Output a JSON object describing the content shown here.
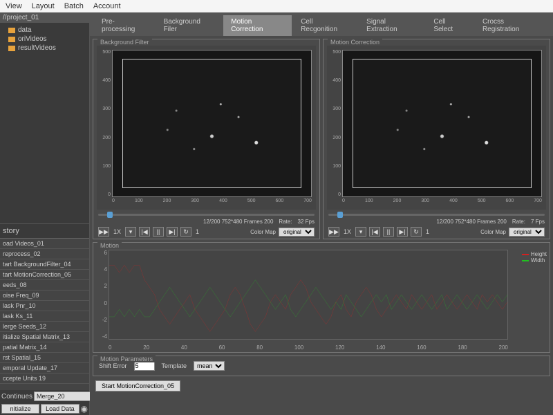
{
  "menubar": [
    "View",
    "Layout",
    "Batch",
    "Account"
  ],
  "project_path": "//project_01",
  "tree_items": [
    "data",
    "oriVideos",
    "resultVideos"
  ],
  "history_label": "story",
  "history": [
    "oad Videos_01",
    "reprocess_02",
    "tart BackgroundFilter_04",
    "tart MotionCorrection_05",
    "eeds_08",
    "oise Freq_09",
    "lask Pnr_10",
    "lask Ks_11",
    "lerge Seeds_12",
    "itialize Spatial Matrix_13",
    "patial Matrix_14",
    "rst Spatial_15",
    "emporal Update_17",
    "ccepte Units 19"
  ],
  "continues_label": "Continues",
  "merge_label": "Merge_20",
  "initialize_btn": "nitialize",
  "load_data_btn": "Load Data",
  "tabs": [
    "Pre-processing",
    "Background Filer",
    "Motion Correction",
    "Cell Recgonition",
    "Signal Extraction",
    "Cell Select",
    "Crocss Registration"
  ],
  "active_tab": 2,
  "video_panels": {
    "left": {
      "title": "Background Filter",
      "y_ticks": [
        "0",
        "100",
        "200",
        "300",
        "400",
        "500"
      ],
      "x_ticks": [
        "0",
        "100",
        "200",
        "300",
        "400",
        "500",
        "600",
        "700"
      ],
      "frame_info": "12/200 752*480 Frames 200",
      "rate_label": "Rate:",
      "fps": "32 Fps",
      "speed": "1X",
      "loop": "1",
      "colormap_label": "Color Map",
      "colormap_value": "original"
    },
    "right": {
      "title": "Motion Correction",
      "y_ticks": [
        "0",
        "100",
        "200",
        "300",
        "400",
        "500"
      ],
      "x_ticks": [
        "0",
        "100",
        "200",
        "300",
        "400",
        "500",
        "600",
        "700"
      ],
      "frame_info": "12/200 752*480 Frames 200",
      "rate_label": "Rate:",
      "fps": "7 Fps",
      "speed": "1X",
      "loop": "1",
      "colormap_label": "Color Map",
      "colormap_value": "original"
    }
  },
  "motion": {
    "title": "Motion",
    "y_ticks": [
      "6",
      "4",
      "2",
      "0",
      "-2",
      "-4"
    ],
    "x_ticks": [
      "0",
      "20",
      "40",
      "60",
      "80",
      "100",
      "120",
      "140",
      "160",
      "180",
      "200"
    ],
    "legend": [
      {
        "label": "Height",
        "color": "#d42020"
      },
      {
        "label": "Width",
        "color": "#20c020"
      }
    ],
    "height_color": "#d42020",
    "width_color": "#20c020",
    "height_series": [
      5,
      5,
      4,
      5,
      4,
      5,
      5,
      3,
      2,
      1,
      -1,
      -2,
      -3,
      -2,
      -1,
      0,
      1,
      -1,
      -2,
      -3,
      -4,
      -3,
      -2,
      -1,
      1,
      2,
      1,
      -1,
      -3,
      -4,
      -3,
      -2,
      0,
      1,
      0,
      -1,
      1,
      2,
      3,
      2,
      0,
      -1,
      -2,
      -3,
      -2,
      0,
      1,
      -1,
      -2,
      0,
      1,
      2,
      1,
      -1,
      -2,
      -1,
      0,
      1,
      0,
      -1,
      1,
      0,
      -1,
      0,
      1,
      -1,
      0,
      1,
      0,
      -1,
      0,
      1,
      0,
      -1,
      1,
      0,
      1,
      0,
      -1,
      0
    ],
    "width_series": [
      -2,
      -2,
      -1,
      -2,
      -1,
      -2,
      -1,
      -2,
      -2,
      -1,
      0,
      1,
      2,
      1,
      0,
      -1,
      -2,
      -1,
      0,
      1,
      2,
      1,
      0,
      -1,
      -2,
      -1,
      0,
      1,
      2,
      3,
      2,
      1,
      0,
      -1,
      0,
      1,
      -1,
      -2,
      -1,
      0,
      1,
      2,
      1,
      0,
      -1,
      0,
      -1,
      1,
      0,
      -1,
      -2,
      -1,
      0,
      1,
      0,
      1,
      -1,
      0,
      1,
      0,
      -1,
      0,
      1,
      0,
      -1,
      0,
      1,
      -1,
      0,
      1,
      0,
      -1,
      0,
      1,
      0,
      -1,
      0,
      1,
      0,
      1
    ]
  },
  "params": {
    "title": "Motion Parameters",
    "shift_error_label": "Shift Error",
    "shift_error_value": "5",
    "template_label": "Template",
    "template_value": "mean"
  },
  "start_btn": "Start MotionCorrection_05",
  "colors": {
    "bg": "#4a4a4a",
    "panel_border": "#777",
    "folder": "#e8a33d",
    "slider_thumb": "#5a9fd4"
  }
}
